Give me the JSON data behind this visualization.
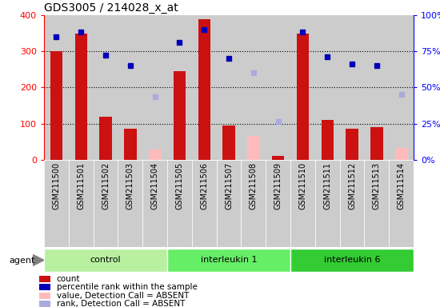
{
  "title": "GDS3005 / 214028_x_at",
  "samples": [
    "GSM211500",
    "GSM211501",
    "GSM211502",
    "GSM211503",
    "GSM211504",
    "GSM211505",
    "GSM211506",
    "GSM211507",
    "GSM211508",
    "GSM211509",
    "GSM211510",
    "GSM211511",
    "GSM211512",
    "GSM211513",
    "GSM211514"
  ],
  "groups": [
    {
      "name": "control",
      "indices": [
        0,
        1,
        2,
        3,
        4
      ],
      "color": "#b8f0a0"
    },
    {
      "name": "interleukin 1",
      "indices": [
        5,
        6,
        7,
        8,
        9
      ],
      "color": "#66ee66"
    },
    {
      "name": "interleukin 6",
      "indices": [
        10,
        11,
        12,
        13,
        14
      ],
      "color": "#33cc33"
    }
  ],
  "count_values": [
    300,
    350,
    120,
    85,
    null,
    245,
    390,
    95,
    null,
    10,
    350,
    110,
    85,
    90,
    null
  ],
  "count_absent": [
    null,
    null,
    null,
    null,
    28,
    null,
    null,
    null,
    65,
    null,
    null,
    null,
    null,
    null,
    32
  ],
  "rank_values": [
    340,
    355,
    290,
    260,
    null,
    325,
    360,
    280,
    null,
    null,
    355,
    285,
    265,
    260,
    null
  ],
  "rank_absent": [
    null,
    null,
    null,
    null,
    175,
    null,
    null,
    null,
    240,
    105,
    null,
    null,
    null,
    null,
    180
  ],
  "ylim_left": [
    0,
    400
  ],
  "ylim_right": [
    0,
    100
  ],
  "yticks_left": [
    0,
    100,
    200,
    300,
    400
  ],
  "yticks_right": [
    0,
    25,
    50,
    75,
    100
  ],
  "ytick_labels_right": [
    "0%",
    "25%",
    "50%",
    "75%",
    "100%"
  ],
  "bar_color_present": "#cc1111",
  "bar_color_absent": "#ffbbbb",
  "dot_color_present": "#0000bb",
  "dot_color_absent": "#aaaadd",
  "bg_color": "#cccccc",
  "legend": [
    {
      "label": "count",
      "color": "#cc1111"
    },
    {
      "label": "percentile rank within the sample",
      "color": "#0000bb"
    },
    {
      "label": "value, Detection Call = ABSENT",
      "color": "#ffbbbb"
    },
    {
      "label": "rank, Detection Call = ABSENT",
      "color": "#aaaadd"
    }
  ]
}
